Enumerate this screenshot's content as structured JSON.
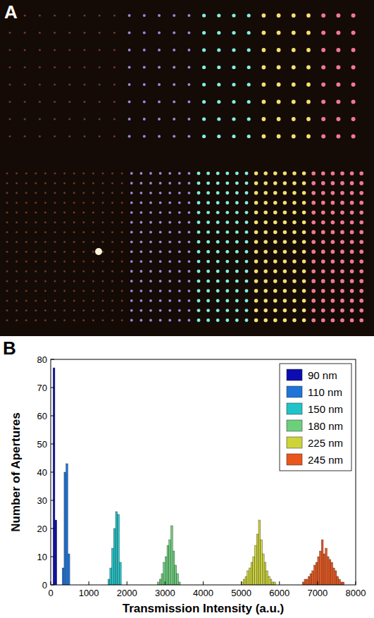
{
  "figure": {
    "panel_labels": [
      "A",
      "B"
    ]
  },
  "chart_data": {
    "type": "histogram",
    "x_label": "Transmission Intensity (a.u.)",
    "y_label": "Number of Apertures",
    "xlim": [
      0,
      8000
    ],
    "xticks": [
      0,
      1000,
      2000,
      3000,
      4000,
      5000,
      6000,
      7000,
      8000
    ],
    "ylim": [
      0,
      80
    ],
    "yticks": [
      0,
      10,
      20,
      30,
      40,
      50,
      60,
      70,
      80
    ],
    "grid": false,
    "legend": "top-right",
    "series": [
      {
        "name": "90 nm",
        "color": "#0c0cb0",
        "bins": [
          60,
          110,
          160
        ],
        "values": [
          77,
          23
        ]
      },
      {
        "name": "110 nm",
        "color": "#1f74d8",
        "bins": [
          300,
          350,
          400,
          450,
          500
        ],
        "values": [
          6,
          40,
          43,
          11
        ]
      },
      {
        "name": "150 nm",
        "color": "#20c4c8",
        "bins": [
          1500,
          1550,
          1600,
          1650,
          1700,
          1750,
          1800,
          1850
        ],
        "values": [
          2,
          6,
          13,
          20,
          26,
          25,
          8
        ]
      },
      {
        "name": "180 nm",
        "color": "#6ccf7c",
        "bins": [
          2800,
          2850,
          2900,
          2950,
          3000,
          3050,
          3100,
          3150,
          3200,
          3250,
          3300,
          3350,
          3400
        ],
        "values": [
          1,
          2,
          4,
          8,
          10,
          14,
          16,
          21,
          12,
          7,
          4,
          1
        ]
      },
      {
        "name": "225 nm",
        "color": "#cdd43a",
        "bins": [
          5000,
          5050,
          5100,
          5150,
          5200,
          5250,
          5300,
          5350,
          5400,
          5450,
          5500,
          5550,
          5600,
          5650,
          5700,
          5750,
          5800,
          5850,
          5900
        ],
        "values": [
          1,
          2,
          3,
          5,
          6,
          8,
          10,
          14,
          18,
          23,
          16,
          11,
          8,
          5,
          3,
          2,
          1,
          1
        ]
      },
      {
        "name": "245 nm",
        "color": "#e8561c",
        "bins": [
          6600,
          6650,
          6700,
          6750,
          6800,
          6850,
          6900,
          6950,
          7000,
          7050,
          7100,
          7150,
          7200,
          7250,
          7300,
          7350,
          7400,
          7450,
          7500,
          7550,
          7600,
          7650,
          7700
        ],
        "values": [
          1,
          2,
          2,
          3,
          4,
          5,
          7,
          8,
          10,
          12,
          16,
          11,
          13,
          10,
          9,
          8,
          6,
          5,
          3,
          2,
          1,
          1
        ]
      }
    ]
  }
}
